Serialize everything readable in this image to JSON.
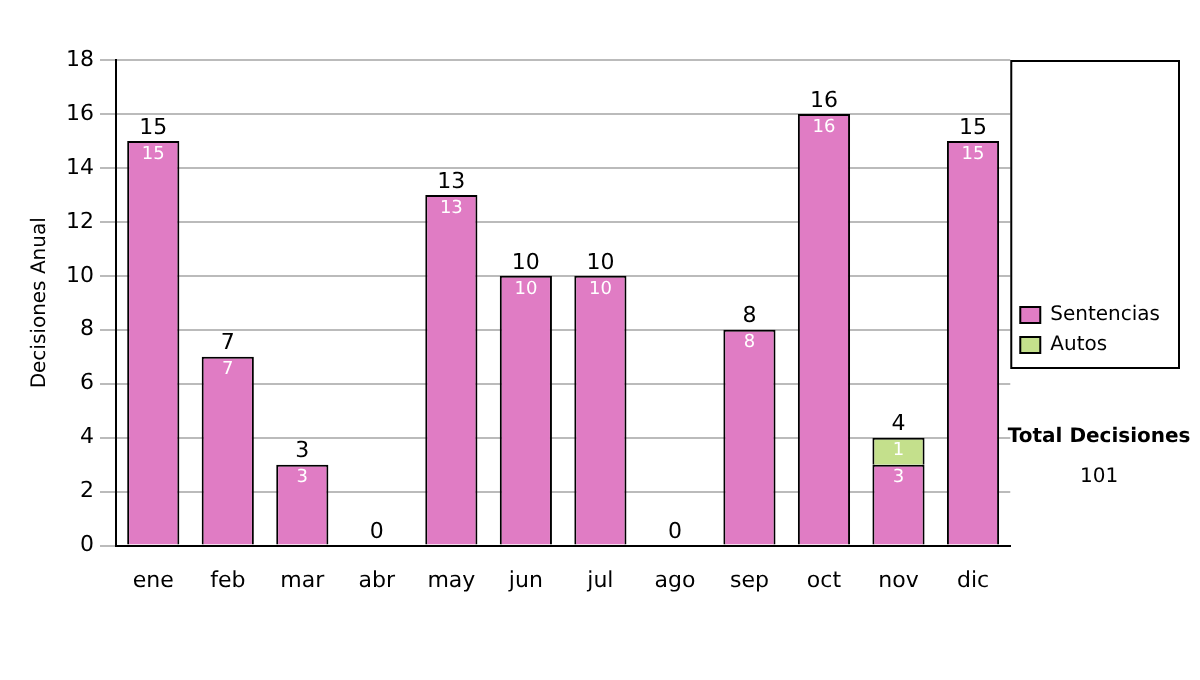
{
  "chart_data": {
    "type": "bar",
    "stacked": true,
    "ylabel": "Decisiones Anual",
    "categories": [
      "ene",
      "feb",
      "mar",
      "abr",
      "may",
      "jun",
      "jul",
      "ago",
      "sep",
      "oct",
      "nov",
      "dic"
    ],
    "series": [
      {
        "name": "Sentencias",
        "color": "#e07cc4",
        "values": [
          15,
          7,
          3,
          0,
          13,
          10,
          10,
          0,
          8,
          16,
          3,
          15
        ],
        "value_labels": [
          "15",
          "7",
          "3",
          null,
          "13",
          "10",
          "10",
          null,
          "8",
          "16",
          "3",
          "15"
        ]
      },
      {
        "name": "Autos",
        "color": "#c4e08c",
        "values": [
          0,
          0,
          0,
          0,
          0,
          0,
          0,
          0,
          0,
          0,
          1,
          0
        ],
        "value_labels": [
          null,
          null,
          null,
          null,
          null,
          null,
          null,
          null,
          null,
          null,
          "1",
          null
        ]
      }
    ],
    "totals": [
      "15",
      "7",
      "3",
      "0",
      "13",
      "10",
      "10",
      "0",
      "8",
      "16",
      "4",
      "15"
    ],
    "ylim": [
      0,
      18
    ],
    "yticks": [
      0,
      2,
      4,
      6,
      8,
      10,
      12,
      14,
      16,
      18
    ],
    "grid": "y",
    "legend": "right",
    "annotations": [
      "Total Decisiones",
      "101"
    ]
  }
}
